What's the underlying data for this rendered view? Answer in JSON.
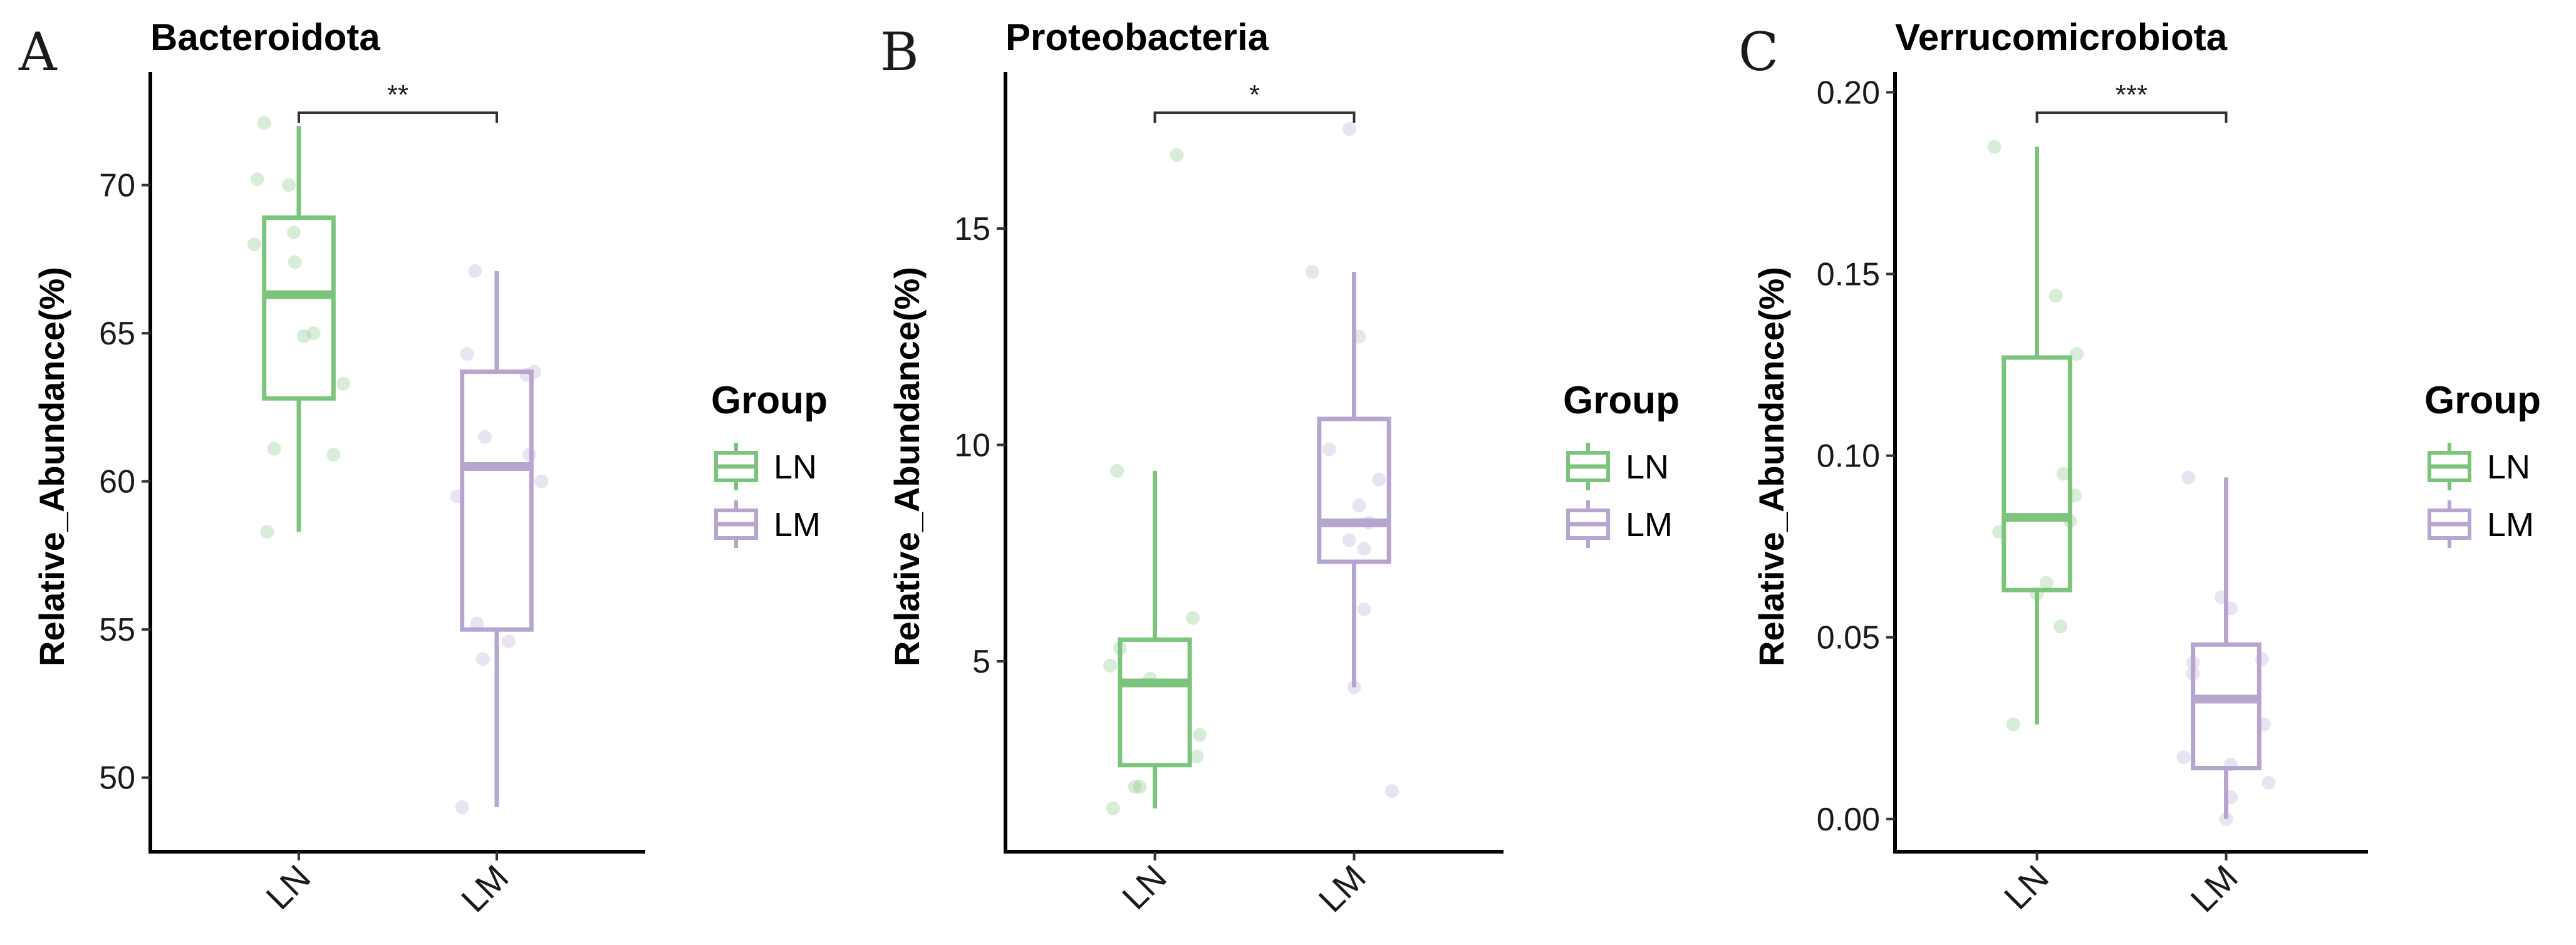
{
  "colors": {
    "LN": "#7cc47b",
    "LM": "#b6a5cf"
  },
  "chart_data": [
    {
      "type": "box",
      "letter": "A",
      "title": "Bacteroidota",
      "ylabel": "Relative_Abundance(%)",
      "xlabel": "",
      "categories": [
        "LN",
        "LM"
      ],
      "ylim": [
        47.5,
        73.5
      ],
      "yticks": [
        50,
        55,
        60,
        65,
        70
      ],
      "significance": "**",
      "legend": {
        "title": "Group",
        "entries": [
          "LN",
          "LM"
        ]
      },
      "boxes": [
        {
          "group": "LN",
          "min": 58.3,
          "q1": 62.8,
          "median": 66.3,
          "q3": 68.9,
          "max": 72.0
        },
        {
          "group": "LM",
          "min": 49.0,
          "q1": 55.0,
          "median": 60.5,
          "q3": 63.7,
          "max": 67.1
        }
      ],
      "points": [
        {
          "group": "LN",
          "jitter": -0.35,
          "value": 72.1
        },
        {
          "group": "LN",
          "jitter": -0.42,
          "value": 70.2
        },
        {
          "group": "LN",
          "jitter": -0.45,
          "value": 68.0
        },
        {
          "group": "LN",
          "jitter": -0.1,
          "value": 70.0
        },
        {
          "group": "LN",
          "jitter": -0.05,
          "value": 68.4
        },
        {
          "group": "LN",
          "jitter": -0.04,
          "value": 67.4
        },
        {
          "group": "LN",
          "jitter": 0.05,
          "value": 64.9
        },
        {
          "group": "LN",
          "jitter": 0.15,
          "value": 65.0
        },
        {
          "group": "LN",
          "jitter": 0.45,
          "value": 63.3
        },
        {
          "group": "LN",
          "jitter": -0.25,
          "value": 61.1
        },
        {
          "group": "LN",
          "jitter": 0.35,
          "value": 60.9
        },
        {
          "group": "LN",
          "jitter": -0.32,
          "value": 58.3
        },
        {
          "group": "LM",
          "jitter": -0.22,
          "value": 67.1
        },
        {
          "group": "LM",
          "jitter": -0.3,
          "value": 64.3
        },
        {
          "group": "LM",
          "jitter": 0.38,
          "value": 63.7
        },
        {
          "group": "LM",
          "jitter": 0.3,
          "value": 63.6
        },
        {
          "group": "LM",
          "jitter": -0.12,
          "value": 61.5
        },
        {
          "group": "LM",
          "jitter": 0.33,
          "value": 60.9
        },
        {
          "group": "LM",
          "jitter": 0.45,
          "value": 60.0
        },
        {
          "group": "LM",
          "jitter": -0.4,
          "value": 59.5
        },
        {
          "group": "LM",
          "jitter": -0.2,
          "value": 55.2
        },
        {
          "group": "LM",
          "jitter": 0.12,
          "value": 54.6
        },
        {
          "group": "LM",
          "jitter": -0.14,
          "value": 54.0
        },
        {
          "group": "LM",
          "jitter": -0.35,
          "value": 49.0
        }
      ]
    },
    {
      "type": "box",
      "letter": "B",
      "title": "Proteobacteria",
      "ylabel": "Relative_Abundance(%)",
      "xlabel": "",
      "categories": [
        "LN",
        "LM"
      ],
      "ylim": [
        0.6,
        18.4
      ],
      "yticks": [
        5,
        10,
        15
      ],
      "significance": "*",
      "legend": {
        "title": "Group",
        "entries": [
          "LN",
          "LM"
        ]
      },
      "boxes": [
        {
          "group": "LN",
          "min": 1.6,
          "q1": 2.6,
          "median": 4.5,
          "q3": 5.5,
          "max": 9.4
        },
        {
          "group": "LM",
          "min": 4.4,
          "q1": 7.3,
          "median": 8.2,
          "q3": 10.6,
          "max": 14.0
        }
      ],
      "points": [
        {
          "group": "LN",
          "jitter": 0.22,
          "value": 16.7
        },
        {
          "group": "LN",
          "jitter": -0.38,
          "value": 9.4
        },
        {
          "group": "LN",
          "jitter": 0.38,
          "value": 6.0
        },
        {
          "group": "LN",
          "jitter": -0.35,
          "value": 5.3
        },
        {
          "group": "LN",
          "jitter": -0.45,
          "value": 4.9
        },
        {
          "group": "LN",
          "jitter": -0.05,
          "value": 4.6
        },
        {
          "group": "LN",
          "jitter": 0.45,
          "value": 3.3
        },
        {
          "group": "LN",
          "jitter": 0.42,
          "value": 2.8
        },
        {
          "group": "LN",
          "jitter": -0.2,
          "value": 2.1
        },
        {
          "group": "LN",
          "jitter": -0.15,
          "value": 2.1
        },
        {
          "group": "LN",
          "jitter": -0.42,
          "value": 1.6
        },
        {
          "group": "LM",
          "jitter": -0.05,
          "value": 17.3
        },
        {
          "group": "LM",
          "jitter": -0.42,
          "value": 14.0
        },
        {
          "group": "LM",
          "jitter": -0.25,
          "value": 9.9
        },
        {
          "group": "LM",
          "jitter": 0.05,
          "value": 12.5
        },
        {
          "group": "LM",
          "jitter": 0.25,
          "value": 9.2
        },
        {
          "group": "LM",
          "jitter": 0.05,
          "value": 8.6
        },
        {
          "group": "LM",
          "jitter": 0.15,
          "value": 8.2
        },
        {
          "group": "LM",
          "jitter": -0.05,
          "value": 7.8
        },
        {
          "group": "LM",
          "jitter": 0.1,
          "value": 7.6
        },
        {
          "group": "LM",
          "jitter": 0.1,
          "value": 6.2
        },
        {
          "group": "LM",
          "jitter": 0.0,
          "value": 4.4
        },
        {
          "group": "LM",
          "jitter": 0.38,
          "value": 2.0
        }
      ]
    },
    {
      "type": "box",
      "letter": "C",
      "title": "Verrucomicrobiota",
      "ylabel": "Relative_Abundance(%)",
      "xlabel": "",
      "categories": [
        "LN",
        "LM"
      ],
      "ylim": [
        -0.009,
        0.203
      ],
      "yticks": [
        "0.00",
        "0.05",
        "0.10",
        "0.15",
        "0.20"
      ],
      "significance": "***",
      "legend": {
        "title": "Group",
        "entries": [
          "LN",
          "LM"
        ]
      },
      "boxes": [
        {
          "group": "LN",
          "min": 0.026,
          "q1": 0.063,
          "median": 0.083,
          "q3": 0.127,
          "max": 0.185
        },
        {
          "group": "LM",
          "min": 0.0,
          "q1": 0.014,
          "median": 0.033,
          "q3": 0.048,
          "max": 0.094
        }
      ],
      "points": [
        {
          "group": "LN",
          "jitter": -0.45,
          "value": 0.185
        },
        {
          "group": "LN",
          "jitter": 0.2,
          "value": 0.144
        },
        {
          "group": "LN",
          "jitter": 0.42,
          "value": 0.128
        },
        {
          "group": "LN",
          "jitter": 0.28,
          "value": 0.095
        },
        {
          "group": "LN",
          "jitter": 0.4,
          "value": 0.089
        },
        {
          "group": "LN",
          "jitter": 0.35,
          "value": 0.082
        },
        {
          "group": "LN",
          "jitter": -0.4,
          "value": 0.079
        },
        {
          "group": "LN",
          "jitter": 0.1,
          "value": 0.065
        },
        {
          "group": "LN",
          "jitter": 0.0,
          "value": 0.062
        },
        {
          "group": "LN",
          "jitter": 0.25,
          "value": 0.053
        },
        {
          "group": "LN",
          "jitter": -0.25,
          "value": 0.026
        },
        {
          "group": "LM",
          "jitter": -0.4,
          "value": 0.094
        },
        {
          "group": "LM",
          "jitter": -0.05,
          "value": 0.061
        },
        {
          "group": "LM",
          "jitter": 0.05,
          "value": 0.058
        },
        {
          "group": "LM",
          "jitter": 0.38,
          "value": 0.044
        },
        {
          "group": "LM",
          "jitter": -0.35,
          "value": 0.043
        },
        {
          "group": "LM",
          "jitter": -0.35,
          "value": 0.04
        },
        {
          "group": "LM",
          "jitter": 0.4,
          "value": 0.026
        },
        {
          "group": "LM",
          "jitter": -0.45,
          "value": 0.017
        },
        {
          "group": "LM",
          "jitter": 0.05,
          "value": 0.015
        },
        {
          "group": "LM",
          "jitter": 0.45,
          "value": 0.01
        },
        {
          "group": "LM",
          "jitter": 0.05,
          "value": 0.006
        },
        {
          "group": "LM",
          "jitter": 0.0,
          "value": 0.0
        }
      ]
    }
  ]
}
